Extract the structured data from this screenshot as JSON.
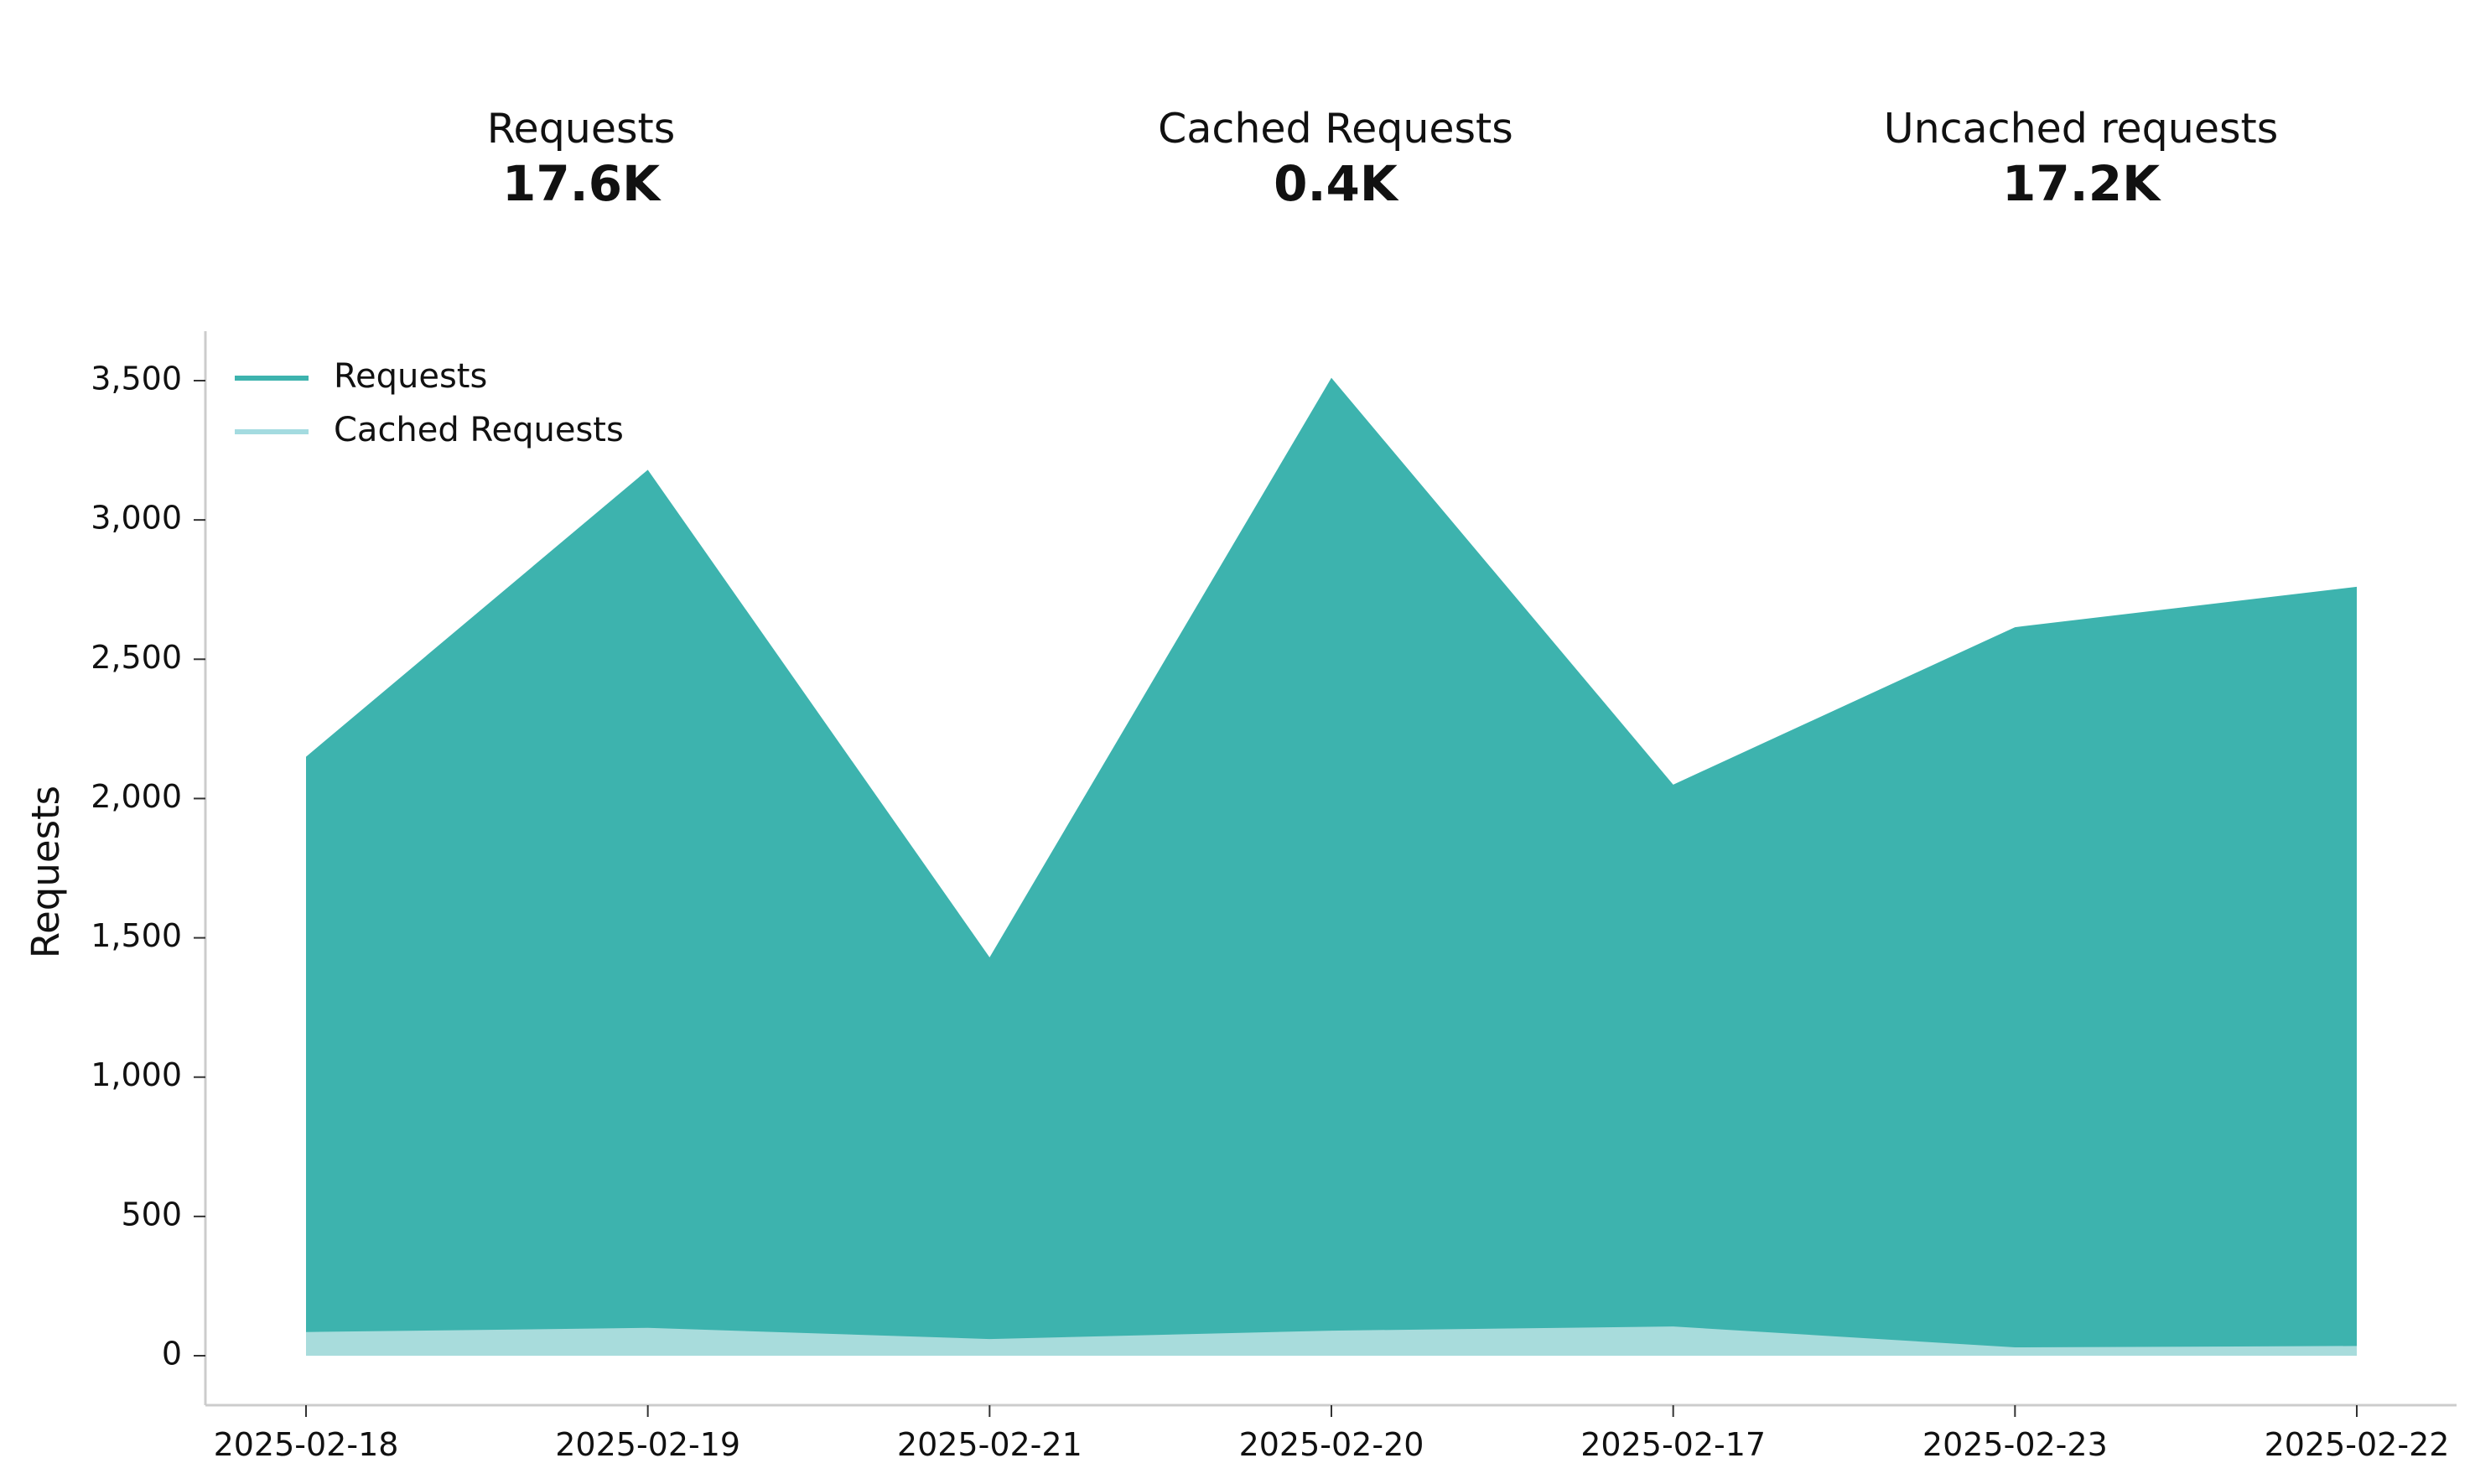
{
  "stats": [
    {
      "label": "Requests",
      "value": "17.6K"
    },
    {
      "label": "Cached Requests",
      "value": "0.4K"
    },
    {
      "label": "Uncached requests",
      "value": "17.2K"
    }
  ],
  "colors": {
    "requests": "#3db3ae",
    "cached": "#a8dcdc",
    "legend_requests": "#3db3ae",
    "legend_cached": "#a4dbe0",
    "axis": "#cccccc",
    "text": "#111111"
  },
  "chart_data": {
    "type": "area",
    "categories": [
      "2025-02-18",
      "2025-02-19",
      "2025-02-21",
      "2025-02-20",
      "2025-02-17",
      "2025-02-23",
      "2025-02-22"
    ],
    "series": [
      {
        "name": "Requests",
        "values": [
          2150,
          3180,
          1430,
          3510,
          2050,
          2615,
          2760
        ]
      },
      {
        "name": "Cached Requests",
        "values": [
          85,
          100,
          60,
          90,
          105,
          30,
          35
        ]
      }
    ],
    "title": "",
    "xlabel": "",
    "ylabel": "Requests",
    "ylim": [
      -170,
      3680
    ],
    "yticks": [
      0,
      500,
      1000,
      1500,
      2000,
      2500,
      3000,
      3500
    ],
    "ytick_labels": [
      "0",
      "500",
      "1,000",
      "1,500",
      "2,000",
      "2,500",
      "3,000",
      "3,500"
    ],
    "legend": {
      "position": "top-left",
      "entries": [
        "Requests",
        "Cached Requests"
      ]
    },
    "grid": false
  }
}
